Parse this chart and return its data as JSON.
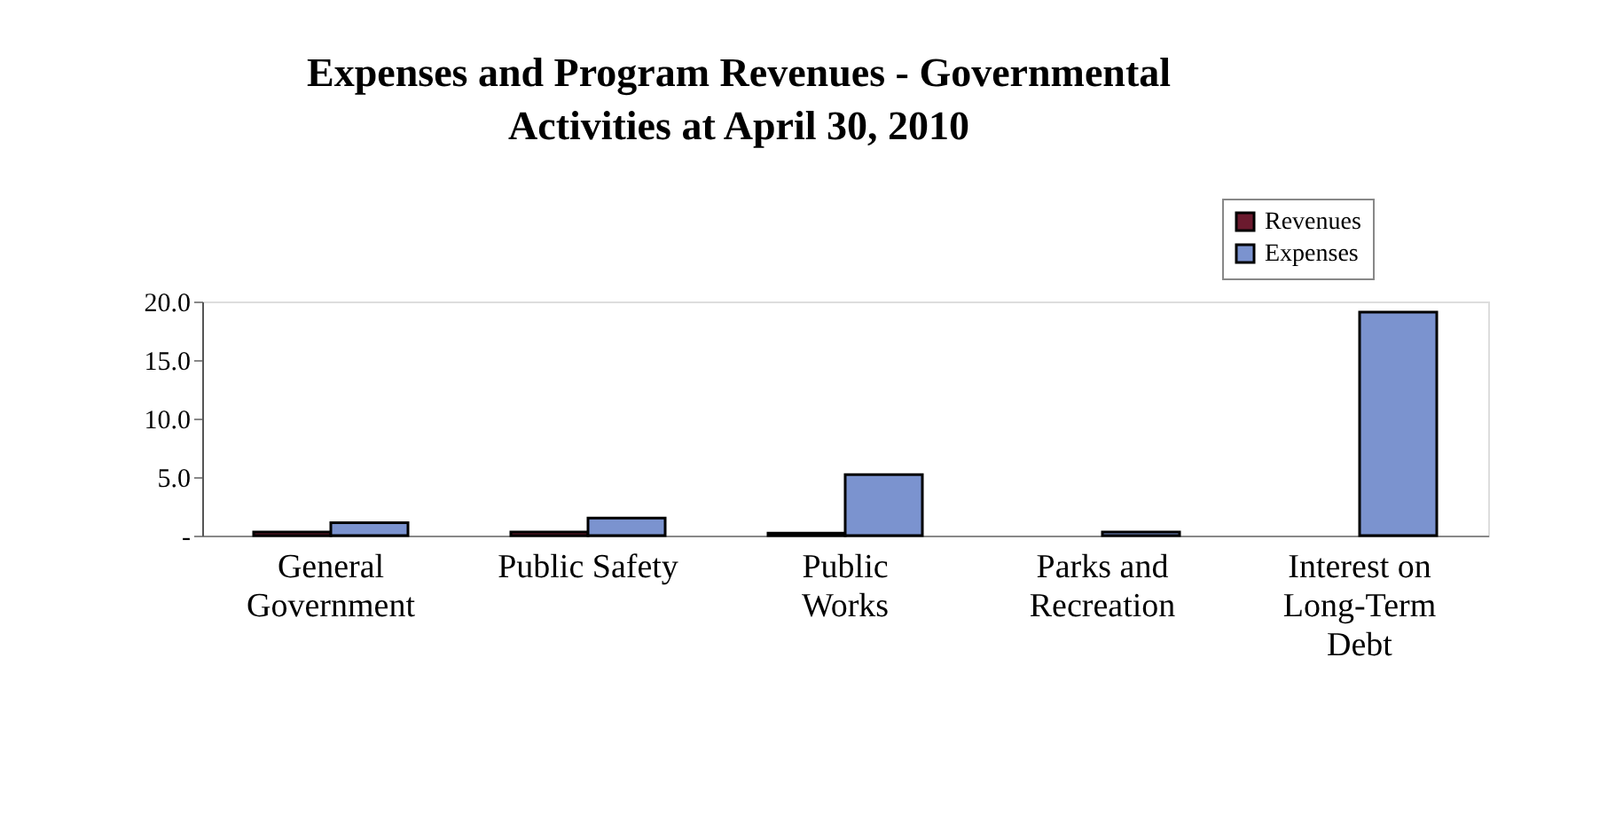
{
  "chart_data": {
    "type": "bar",
    "title": [
      "Expenses and Program Revenues - Governmental",
      "Activities at April 30, 2010"
    ],
    "categories": [
      "General\nGovernment",
      "Public Safety",
      "Public\nWorks",
      "Parks and\nRecreation",
      "Interest on\nLong-Term\nDebt"
    ],
    "series": [
      {
        "name": "Revenues",
        "color": "#6b1a2e",
        "values": [
          0.3,
          0.3,
          0.2,
          null,
          null
        ]
      },
      {
        "name": "Expenses",
        "color": "#7b93cf",
        "values": [
          1.1,
          1.5,
          5.2,
          0.3,
          19.1
        ]
      }
    ],
    "ylim": [
      0,
      20
    ],
    "yticks": [
      {
        "value": 0,
        "label": "-"
      },
      {
        "value": 5,
        "label": "5.0"
      },
      {
        "value": 10,
        "label": "10.0"
      },
      {
        "value": 15,
        "label": "15.0"
      },
      {
        "value": 20,
        "label": "20.0"
      }
    ],
    "legend": "top right",
    "grid": false
  }
}
